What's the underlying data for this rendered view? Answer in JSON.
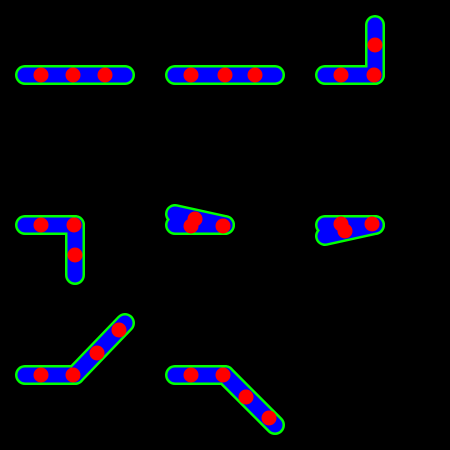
{
  "colors": {
    "background": "#000000",
    "outline": "#00ff00",
    "body": "#0000ff",
    "joint": "#ff0000"
  },
  "figures": [
    {
      "name": "straight",
      "joints": 3
    },
    {
      "name": "overlap",
      "joints": 3
    },
    {
      "name": "bend-up",
      "joints": 3
    },
    {
      "name": "bend-down",
      "joints": 3
    },
    {
      "name": "fold-up",
      "joints": 3
    },
    {
      "name": "fold-down",
      "joints": 3
    },
    {
      "name": "diagonal-up",
      "joints": 4
    },
    {
      "name": "diagonal-down",
      "joints": 4
    }
  ]
}
